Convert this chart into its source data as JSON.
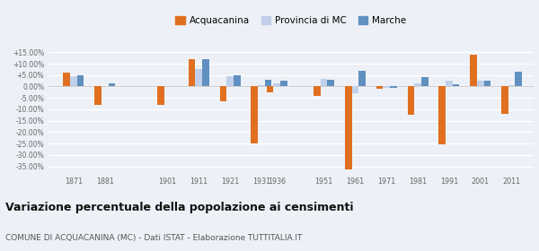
{
  "years": [
    1871,
    1881,
    1901,
    1911,
    1921,
    1931,
    1936,
    1951,
    1961,
    1971,
    1981,
    1991,
    2001,
    2011
  ],
  "acquacanina": [
    6.0,
    -8.0,
    -8.0,
    12.0,
    -6.5,
    -25.0,
    -2.5,
    -4.0,
    -36.5,
    -1.0,
    -12.5,
    -25.5,
    14.0,
    -12.0
  ],
  "provincia_mc": [
    4.5,
    0.0,
    0.0,
    7.5,
    4.5,
    0.5,
    1.5,
    3.5,
    -3.0,
    -0.5,
    1.5,
    2.5,
    2.5,
    0.5
  ],
  "marche": [
    5.0,
    1.5,
    0.0,
    12.0,
    5.0,
    3.0,
    2.5,
    3.0,
    7.0,
    -0.5,
    4.0,
    1.0,
    2.5,
    6.5
  ],
  "acquacanina_color": "#e07020",
  "provincia_color": "#c0d0ea",
  "marche_color": "#6090c0",
  "background_color": "#edf1f7",
  "title": "Variazione percentuale della popolazione ai censimenti",
  "subtitle": "COMUNE DI ACQUACANINA (MC) - Dati ISTAT - Elaborazione TUTTITALIA.IT",
  "ylim": [
    -38,
    17
  ],
  "yticks": [
    -35,
    -30,
    -25,
    -20,
    -15,
    -10,
    -5,
    0,
    5,
    10,
    15
  ],
  "legend_labels": [
    "Acquacanina",
    "Provincia di MC",
    "Marche"
  ]
}
